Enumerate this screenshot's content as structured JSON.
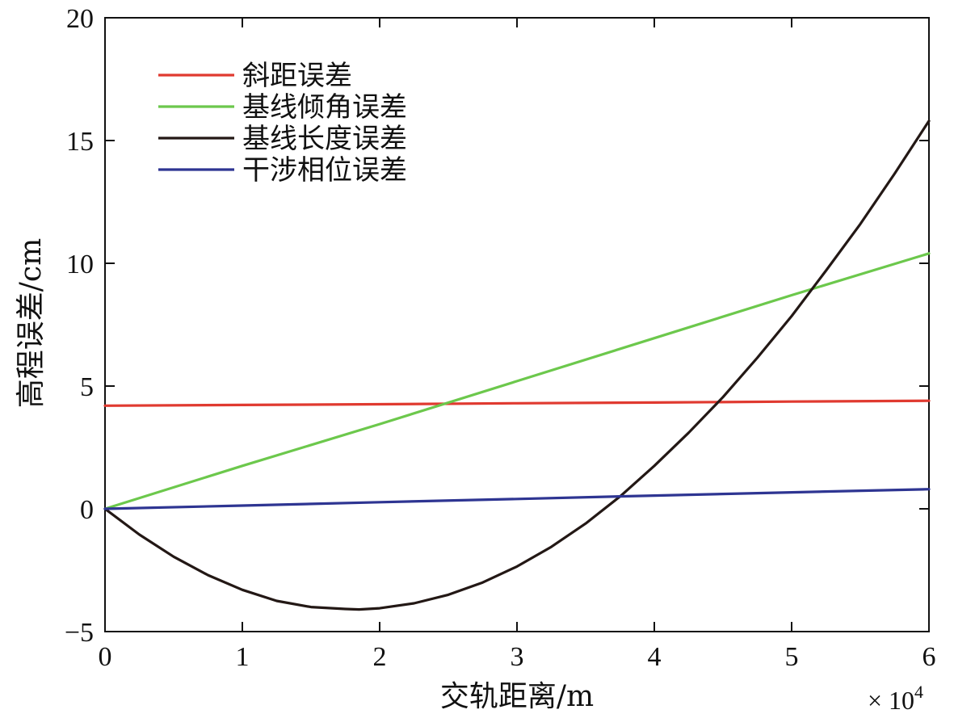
{
  "chart_data": {
    "type": "line",
    "xlabel": "交轨距离/m",
    "ylabel": "高程误差/cm",
    "x_multiplier_label": "× 10",
    "x_multiplier_exponent": "4",
    "xlim": [
      0,
      6
    ],
    "ylim": [
      -5,
      20
    ],
    "xticks": [
      "0",
      "1",
      "2",
      "3",
      "4",
      "5",
      "6"
    ],
    "yticks": [
      "-5",
      "0",
      "5",
      "10",
      "15",
      "20"
    ],
    "grid": false,
    "legend_position": "top-left",
    "series": [
      {
        "name": "斜距误差",
        "color": "#e03a30",
        "x": [
          0,
          1,
          2,
          3,
          4,
          5,
          6
        ],
        "y": [
          4.2,
          4.23,
          4.26,
          4.3,
          4.33,
          4.37,
          4.4
        ]
      },
      {
        "name": "基线倾角误差",
        "color": "#6cc84c",
        "x": [
          0,
          1,
          2,
          3,
          4,
          5,
          6
        ],
        "y": [
          0,
          1.75,
          3.45,
          5.2,
          6.95,
          8.7,
          10.4
        ]
      },
      {
        "name": "基线长度误差",
        "color": "#231815",
        "x": [
          0,
          0.25,
          0.5,
          0.75,
          1,
          1.25,
          1.5,
          1.75,
          1.85,
          2,
          2.25,
          2.5,
          2.75,
          3,
          3.25,
          3.5,
          3.75,
          4,
          4.25,
          4.5,
          4.75,
          5,
          5.25,
          5.5,
          5.75,
          6
        ],
        "y": [
          0,
          -1.05,
          -1.95,
          -2.7,
          -3.3,
          -3.75,
          -4.0,
          -4.08,
          -4.1,
          -4.05,
          -3.85,
          -3.5,
          -3.0,
          -2.35,
          -1.55,
          -0.6,
          0.5,
          1.75,
          3.1,
          4.55,
          6.15,
          7.85,
          9.7,
          11.6,
          13.65,
          15.8
        ]
      },
      {
        "name": "干涉相位误差",
        "color": "#2e3592",
        "x": [
          0,
          1,
          2,
          3,
          4,
          5,
          6
        ],
        "y": [
          0,
          0.13,
          0.27,
          0.4,
          0.54,
          0.67,
          0.8
        ]
      }
    ]
  }
}
